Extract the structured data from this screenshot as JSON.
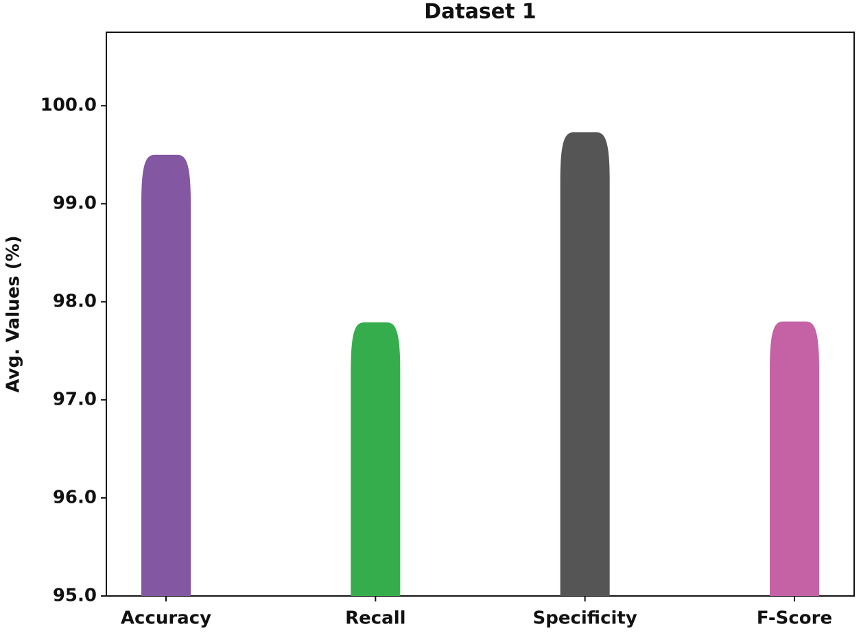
{
  "chart_data": {
    "type": "bar",
    "title": "Dataset 1",
    "y_label": "Avg. Values (%)",
    "categories": [
      "Accuracy",
      "Recall",
      "Specificity",
      "F-Score"
    ],
    "values": [
      99.5,
      97.79,
      99.73,
      97.8
    ],
    "colors": [
      "#8457a3",
      "#36ad4c",
      "#555555",
      "#c462a5"
    ],
    "ylim": [
      95,
      100.75
    ],
    "yticks": [
      {
        "value": 95,
        "label": "95.0"
      },
      {
        "value": 96,
        "label": "96.0"
      },
      {
        "value": 97,
        "label": "97.0"
      },
      {
        "value": 98,
        "label": "98.0"
      },
      {
        "value": 99,
        "label": "99.0"
      },
      {
        "value": 100,
        "label": "100.0"
      }
    ],
    "grid": false
  }
}
